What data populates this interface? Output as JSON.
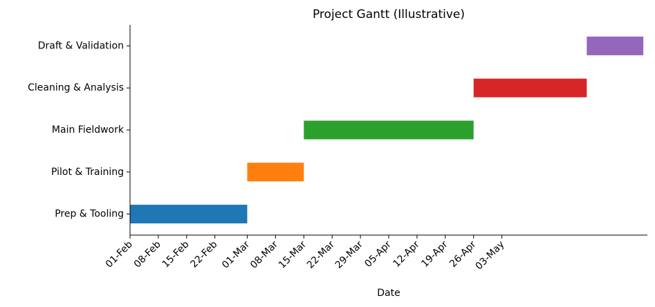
{
  "chart_data": {
    "type": "gantt",
    "title": "Project Gantt (Illustrative)",
    "xlabel": "Date",
    "ylabel": "",
    "x_axis_type": "date",
    "xlim": [
      "2024-02-01",
      "2024-06-08"
    ],
    "x_ticks": [
      {
        "date": "2024-02-01",
        "label": "01-Feb"
      },
      {
        "date": "2024-02-08",
        "label": "08-Feb"
      },
      {
        "date": "2024-02-15",
        "label": "15-Feb"
      },
      {
        "date": "2024-02-22",
        "label": "22-Feb"
      },
      {
        "date": "2024-03-01",
        "label": "01-Mar"
      },
      {
        "date": "2024-03-08",
        "label": "08-Mar"
      },
      {
        "date": "2024-03-15",
        "label": "15-Mar"
      },
      {
        "date": "2024-03-22",
        "label": "22-Mar"
      },
      {
        "date": "2024-03-29",
        "label": "29-Mar"
      },
      {
        "date": "2024-04-05",
        "label": "05-Apr"
      },
      {
        "date": "2024-04-12",
        "label": "12-Apr"
      },
      {
        "date": "2024-04-19",
        "label": "19-Apr"
      },
      {
        "date": "2024-04-26",
        "label": "26-Apr"
      },
      {
        "date": "2024-05-03",
        "label": "03-May"
      }
    ],
    "tasks": [
      {
        "label": "Prep & Tooling",
        "start": "2024-02-01",
        "end": "2024-03-01",
        "color": "#1f77b4"
      },
      {
        "label": "Pilot & Training",
        "start": "2024-03-01",
        "end": "2024-03-15",
        "color": "#ff7f0e"
      },
      {
        "label": "Main Fieldwork",
        "start": "2024-03-15",
        "end": "2024-04-26",
        "color": "#2ca02c"
      },
      {
        "label": "Cleaning & Analysis",
        "start": "2024-04-26",
        "end": "2024-05-24",
        "color": "#d62728"
      },
      {
        "label": "Draft & Validation",
        "start": "2024-05-24",
        "end": "2024-06-07",
        "color": "#9467bd"
      }
    ],
    "grid": false,
    "legend": "none"
  }
}
